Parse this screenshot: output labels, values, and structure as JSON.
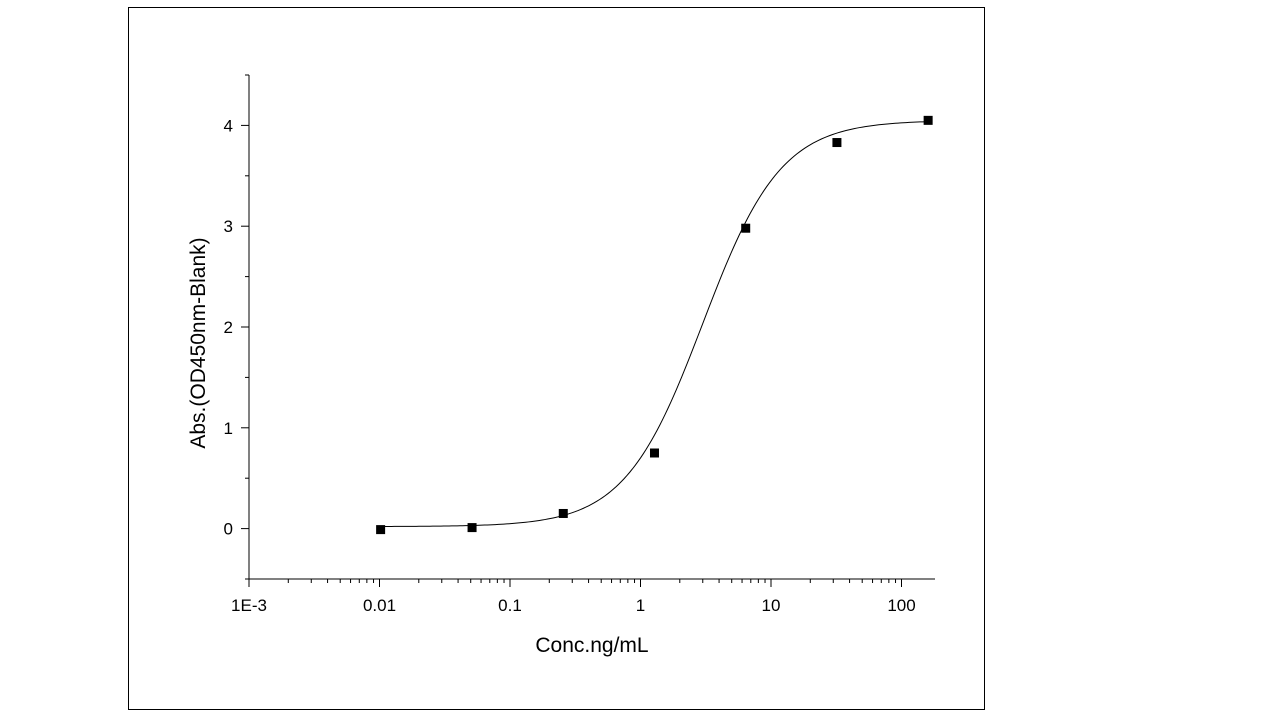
{
  "chart_data": {
    "type": "scatter",
    "title": "",
    "xlabel": "Conc.ng/mL",
    "ylabel": "Abs.(OD450nm-Blank)",
    "x_scale": "log",
    "xlim": [
      0.001,
      200
    ],
    "ylim": [
      -0.5,
      4.5
    ],
    "x_ticks": [
      {
        "value": 0.001,
        "label": "1E-3"
      },
      {
        "value": 0.01,
        "label": "0.01"
      },
      {
        "value": 0.1,
        "label": "0.1"
      },
      {
        "value": 1,
        "label": "1"
      },
      {
        "value": 10,
        "label": "10"
      },
      {
        "value": 100,
        "label": "100"
      }
    ],
    "y_ticks": [
      {
        "value": 0,
        "label": "0"
      },
      {
        "value": 1,
        "label": "1"
      },
      {
        "value": 2,
        "label": "2"
      },
      {
        "value": 3,
        "label": "3"
      },
      {
        "value": 4,
        "label": "4"
      }
    ],
    "grid": false,
    "series": [
      {
        "marker": "square",
        "color": "#000000",
        "x": [
          0.0102,
          0.0512,
          0.256,
          1.28,
          6.4,
          32,
          160
        ],
        "y": [
          -0.01,
          0.01,
          0.15,
          0.75,
          2.98,
          3.83,
          4.05
        ]
      }
    ],
    "fit": {
      "type": "4PL",
      "color": "#000000",
      "bottom": 0.02,
      "top": 4.05,
      "ec50": 3.0,
      "hill": 1.45
    }
  }
}
